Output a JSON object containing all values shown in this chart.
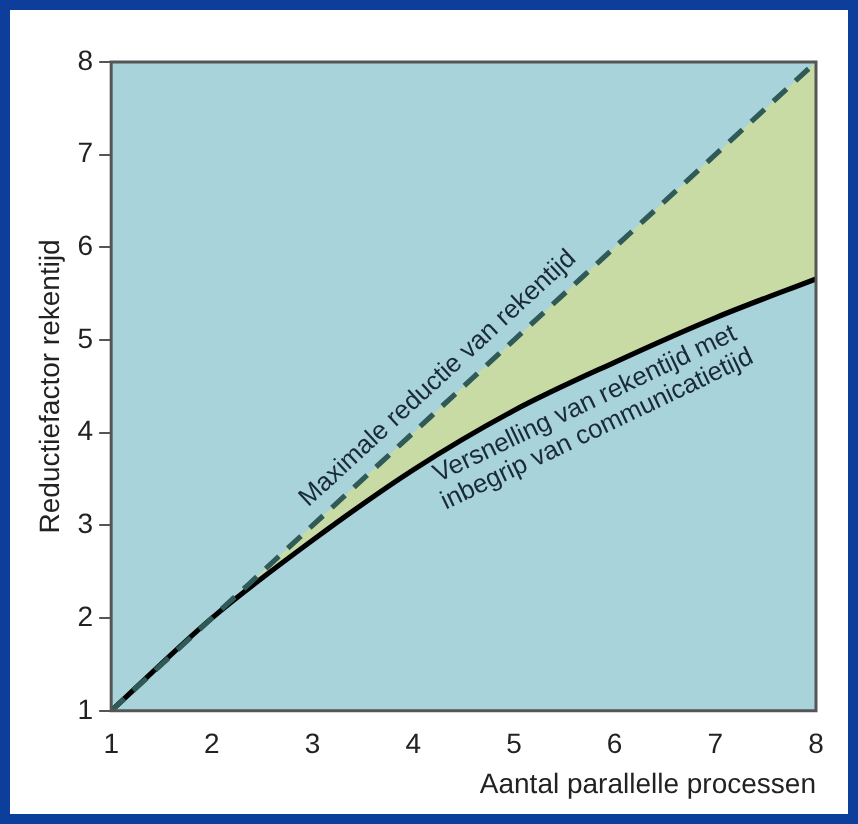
{
  "chart_data": {
    "type": "line",
    "xlabel": "Aantal parallelle processen",
    "ylabel": "Reductiefactor rekentijd",
    "x": [
      1,
      2,
      3,
      4,
      5,
      6,
      7,
      8
    ],
    "series": [
      {
        "color": "#2f5a58",
        "line_style": "dashed",
        "values": [
          1,
          2,
          3,
          4,
          5,
          6,
          7,
          8
        ]
      },
      {
        "color": "#000000",
        "line_style": "solid",
        "values": [
          1,
          2.0,
          2.84,
          3.6,
          4.24,
          4.76,
          5.24,
          5.66
        ],
        "lower": [
          1,
          2.0,
          2.84,
          3.6,
          4.24,
          4.76,
          5.24,
          5.66
        ],
        "upper": [
          1,
          2,
          3,
          4,
          5,
          6,
          7,
          8
        ]
      }
    ],
    "annotations": [
      {
        "text": "Maximale reductie van rekentijd",
        "x": 4.4,
        "y": 4.4
      },
      {
        "text": "Versnelling van rekentijd met\ninbegrip van communicatietijd",
        "x": 5.6,
        "y": 4.55
      }
    ],
    "xlim": [
      1,
      8
    ],
    "xticks": [
      1,
      2,
      3,
      4,
      5,
      6,
      7,
      8
    ],
    "ylim": [
      1,
      8
    ],
    "yticks": [
      1,
      2,
      3,
      4,
      5,
      6,
      7,
      8
    ],
    "grid": false,
    "legend": false,
    "marker": "none"
  }
}
